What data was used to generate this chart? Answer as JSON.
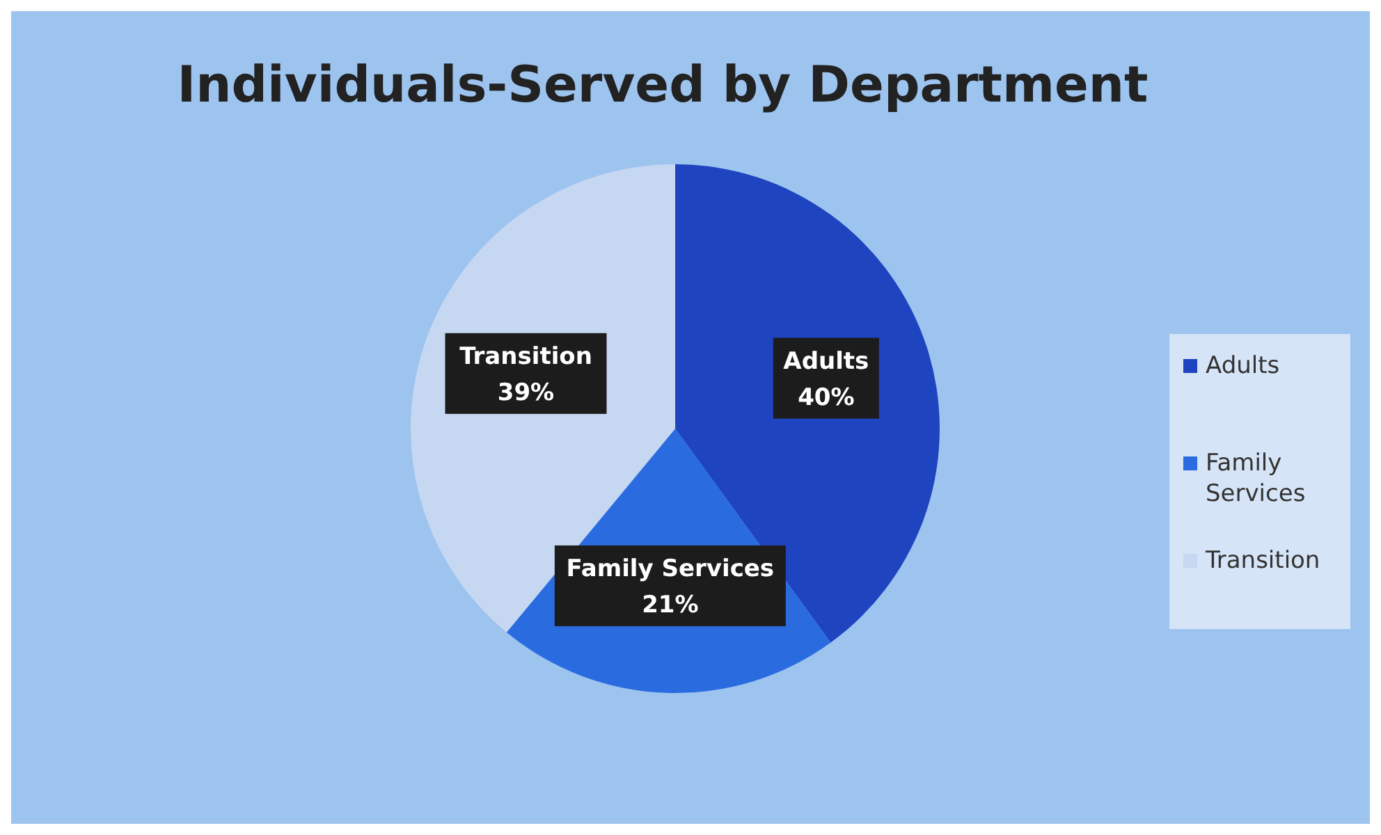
{
  "chart_data": {
    "type": "pie",
    "title": "Individuals-Served by Department",
    "categories": [
      "Adults",
      "Family Services",
      "Transition"
    ],
    "values": [
      40,
      21,
      39
    ],
    "colors": [
      "#1e44c0",
      "#2a6ce0",
      "#c6d7f2"
    ],
    "value_labels": [
      "40%",
      "21%",
      "39%"
    ],
    "legend": "right"
  }
}
